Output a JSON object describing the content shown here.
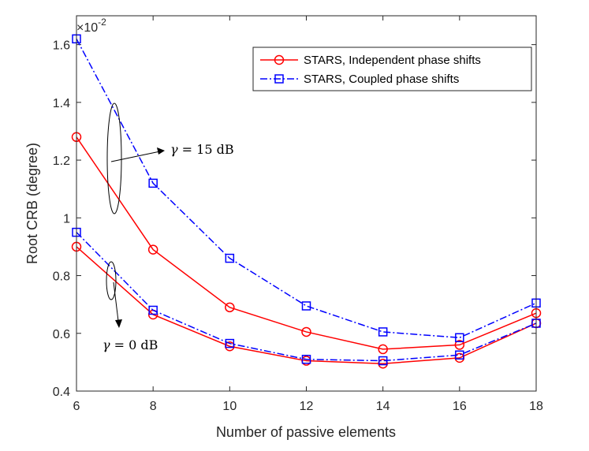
{
  "chart_data": {
    "type": "line",
    "xlabel": "Number of passive elements",
    "ylabel": "Root CRB (degree)",
    "x": [
      6,
      8,
      10,
      12,
      14,
      16,
      18
    ],
    "xlim": [
      6,
      18
    ],
    "ylim": [
      0.4,
      1.7
    ],
    "xticks": [
      "6",
      "8",
      "10",
      "12",
      "14",
      "16",
      "18"
    ],
    "yticks": [
      "0.4",
      "0.6",
      "0.8",
      "1",
      "1.2",
      "1.4",
      "1.6"
    ],
    "exponent_label": "×10",
    "exponent_power": "-2",
    "series": [
      {
        "name": "STARS, Independent phase shifts",
        "group": "gamma = 15 dB",
        "color": "#ff0000",
        "style": "solid",
        "marker": "circle",
        "values": [
          1.28,
          0.89,
          0.69,
          0.605,
          0.545,
          0.56,
          0.67
        ]
      },
      {
        "name": "STARS, Coupled phase shifts",
        "group": "gamma = 15 dB",
        "color": "#0000ff",
        "style": "dashdot",
        "marker": "square",
        "values": [
          1.62,
          1.12,
          0.86,
          0.695,
          0.605,
          0.585,
          0.705
        ]
      },
      {
        "name": "STARS, Independent phase shifts",
        "group": "gamma = 0 dB",
        "color": "#ff0000",
        "style": "solid",
        "marker": "circle",
        "values": [
          0.9,
          0.665,
          0.555,
          0.505,
          0.495,
          0.515,
          0.635
        ]
      },
      {
        "name": "STARS, Coupled phase shifts",
        "group": "gamma = 0 dB",
        "color": "#0000ff",
        "style": "dashdot",
        "marker": "square",
        "values": [
          0.95,
          0.68,
          0.565,
          0.51,
          0.505,
          0.525,
          0.635
        ]
      }
    ],
    "legend": {
      "position": "top-right",
      "entries": [
        {
          "label": "STARS, Independent phase shifts",
          "color": "#ff0000",
          "style": "solid",
          "marker": "circle"
        },
        {
          "label": "STARS, Coupled phase shifts",
          "color": "#0000ff",
          "style": "dashdot",
          "marker": "square"
        }
      ]
    },
    "annotations": [
      {
        "gamma": "γ",
        "rest": " = 15 dB"
      },
      {
        "gamma": "γ",
        "rest": " = 0 dB"
      }
    ]
  }
}
